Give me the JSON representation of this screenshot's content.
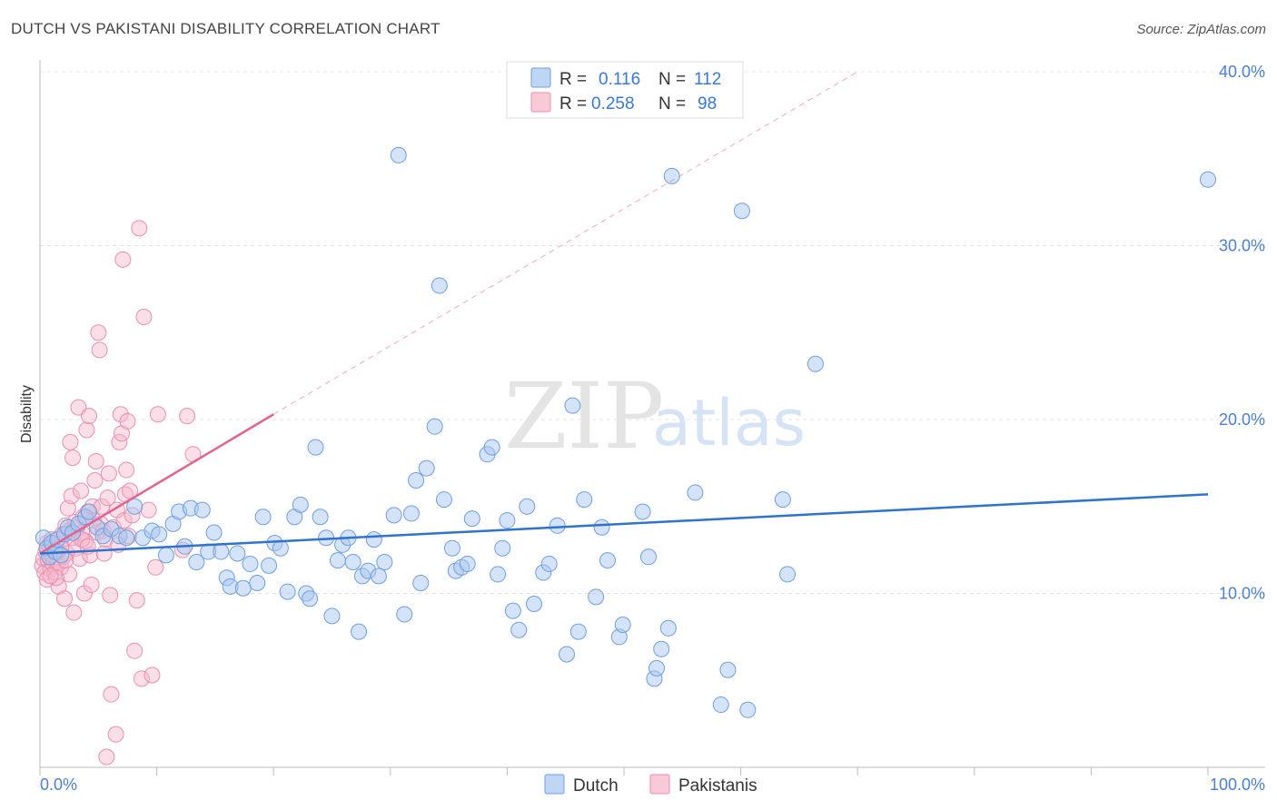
{
  "header": {
    "title": "DUTCH VS PAKISTANI DISABILITY CORRELATION CHART",
    "source": "Source: ZipAtlas.com"
  },
  "watermark": {
    "zip": "ZIP",
    "atlas": "atlas"
  },
  "legend": {
    "r_label": "R =",
    "n_label": "N =",
    "rows": [
      {
        "r": "0.116",
        "n": "112",
        "color": "#a9c7f0"
      },
      {
        "r": "0.258",
        "n": "98",
        "color": "#f5b8cb"
      }
    ]
  },
  "bottom_legend": [
    {
      "label": "Dutch",
      "color": "#a9c7f0"
    },
    {
      "label": "Pakistanis",
      "color": "#f5b8cb"
    }
  ],
  "colors": {
    "dutch_fill": "#a9c7f0",
    "dutch_stroke": "#6f9fe0",
    "dutch_line": "#2f72cf",
    "pak_fill": "#f5b8cb",
    "pak_stroke": "#ea8fad",
    "pak_line": "#e4648f"
  },
  "chart_data": {
    "type": "scatter",
    "title": "DUTCH VS PAKISTANI DISABILITY CORRELATION CHART",
    "xlabel": "",
    "ylabel": "Disability",
    "xlim": [
      0,
      100
    ],
    "ylim": [
      0,
      40
    ],
    "x_ticks": [
      "0.0%",
      "100.0%"
    ],
    "y_ticks": [
      {
        "value": 10,
        "label": "10.0%"
      },
      {
        "value": 20,
        "label": "20.0%"
      },
      {
        "value": 30,
        "label": "30.0%"
      },
      {
        "value": 40,
        "label": "40.0%"
      }
    ],
    "grid": true,
    "series": [
      {
        "name": "Dutch",
        "r": 0.116,
        "n": 112,
        "trend": {
          "x": [
            0,
            100
          ],
          "y": [
            12.3,
            15.7
          ]
        },
        "points": [
          [
            0.3,
            13.2
          ],
          [
            0.6,
            12.6
          ],
          [
            0.8,
            12.1
          ],
          [
            1.0,
            12.9
          ],
          [
            1.3,
            12.4
          ],
          [
            1.5,
            13.1
          ],
          [
            1.8,
            12.2
          ],
          [
            2.1,
            13.4
          ],
          [
            2.4,
            13.8
          ],
          [
            2.8,
            13.5
          ],
          [
            3.3,
            14.0
          ],
          [
            3.9,
            14.4
          ],
          [
            4.2,
            14.7
          ],
          [
            4.9,
            13.8
          ],
          [
            5.4,
            13.3
          ],
          [
            6.1,
            13.7
          ],
          [
            6.8,
            13.3
          ],
          [
            7.4,
            13.2
          ],
          [
            8.1,
            15.0
          ],
          [
            8.8,
            13.2
          ],
          [
            9.6,
            13.6
          ],
          [
            10.2,
            13.4
          ],
          [
            10.8,
            12.2
          ],
          [
            11.4,
            14.0
          ],
          [
            11.9,
            14.7
          ],
          [
            12.4,
            12.7
          ],
          [
            12.9,
            14.9
          ],
          [
            13.4,
            11.8
          ],
          [
            13.9,
            14.8
          ],
          [
            14.4,
            12.4
          ],
          [
            14.9,
            13.5
          ],
          [
            15.5,
            12.4
          ],
          [
            16.0,
            10.9
          ],
          [
            16.3,
            10.4
          ],
          [
            16.9,
            12.3
          ],
          [
            17.4,
            10.3
          ],
          [
            18.0,
            11.7
          ],
          [
            18.6,
            10.6
          ],
          [
            19.1,
            14.4
          ],
          [
            19.6,
            11.6
          ],
          [
            20.1,
            12.9
          ],
          [
            20.6,
            12.6
          ],
          [
            21.2,
            10.1
          ],
          [
            21.8,
            14.4
          ],
          [
            22.3,
            15.1
          ],
          [
            22.8,
            10.0
          ],
          [
            23.1,
            9.7
          ],
          [
            23.6,
            18.4
          ],
          [
            24.0,
            14.4
          ],
          [
            24.5,
            13.2
          ],
          [
            25.0,
            8.7
          ],
          [
            25.5,
            11.9
          ],
          [
            25.9,
            12.8
          ],
          [
            26.4,
            13.2
          ],
          [
            26.8,
            11.8
          ],
          [
            27.3,
            7.8
          ],
          [
            27.6,
            11.0
          ],
          [
            28.1,
            11.3
          ],
          [
            28.6,
            13.1
          ],
          [
            29.0,
            11.0
          ],
          [
            29.5,
            11.8
          ],
          [
            30.3,
            14.5
          ],
          [
            30.7,
            35.2
          ],
          [
            31.2,
            8.8
          ],
          [
            31.8,
            14.6
          ],
          [
            32.2,
            16.5
          ],
          [
            32.6,
            10.6
          ],
          [
            33.1,
            17.2
          ],
          [
            33.8,
            19.6
          ],
          [
            34.2,
            27.7
          ],
          [
            34.6,
            15.4
          ],
          [
            35.3,
            12.6
          ],
          [
            35.6,
            11.3
          ],
          [
            36.1,
            11.5
          ],
          [
            36.6,
            11.7
          ],
          [
            37.0,
            14.3
          ],
          [
            38.3,
            18.0
          ],
          [
            38.7,
            18.4
          ],
          [
            39.2,
            11.1
          ],
          [
            39.6,
            12.6
          ],
          [
            40.0,
            14.2
          ],
          [
            40.5,
            9.0
          ],
          [
            41.0,
            7.9
          ],
          [
            41.7,
            15.0
          ],
          [
            42.3,
            9.4
          ],
          [
            43.1,
            11.2
          ],
          [
            43.6,
            11.7
          ],
          [
            44.3,
            13.9
          ],
          [
            45.1,
            6.5
          ],
          [
            45.6,
            20.8
          ],
          [
            46.1,
            7.8
          ],
          [
            46.6,
            15.4
          ],
          [
            47.6,
            9.8
          ],
          [
            48.1,
            13.8
          ],
          [
            48.6,
            11.9
          ],
          [
            49.6,
            7.5
          ],
          [
            49.9,
            8.2
          ],
          [
            51.6,
            14.7
          ],
          [
            52.1,
            12.1
          ],
          [
            52.6,
            5.1
          ],
          [
            52.8,
            5.7
          ],
          [
            53.2,
            6.8
          ],
          [
            53.8,
            8.0
          ],
          [
            54.1,
            34.0
          ],
          [
            56.1,
            15.8
          ],
          [
            58.3,
            3.6
          ],
          [
            58.9,
            5.6
          ],
          [
            60.1,
            32.0
          ],
          [
            60.6,
            3.3
          ],
          [
            63.6,
            15.4
          ],
          [
            64.0,
            11.1
          ],
          [
            66.4,
            23.2
          ],
          [
            100.0,
            33.8
          ]
        ]
      },
      {
        "name": "Pakistanis",
        "r": 0.258,
        "n": 98,
        "trend": {
          "x": [
            0,
            20
          ],
          "y": [
            12.3,
            20.3
          ]
        },
        "trend_extension": {
          "x": [
            20,
            70
          ],
          "y": [
            20.3,
            40.0
          ]
        },
        "points": [
          [
            0.2,
            11.6
          ],
          [
            0.3,
            12.0
          ],
          [
            0.4,
            11.2
          ],
          [
            0.5,
            12.4
          ],
          [
            0.6,
            10.8
          ],
          [
            0.7,
            11.9
          ],
          [
            0.8,
            12.8
          ],
          [
            0.9,
            11.4
          ],
          [
            1.0,
            12.2
          ],
          [
            1.1,
            11.7
          ],
          [
            1.2,
            13.0
          ],
          [
            1.3,
            11.2
          ],
          [
            1.4,
            12.5
          ],
          [
            1.5,
            11.8
          ],
          [
            1.6,
            10.4
          ],
          [
            1.7,
            12.9
          ],
          [
            1.8,
            11.5
          ],
          [
            1.9,
            13.4
          ],
          [
            2.0,
            12.1
          ],
          [
            2.1,
            9.7
          ],
          [
            2.2,
            13.9
          ],
          [
            2.3,
            12.3
          ],
          [
            2.4,
            14.9
          ],
          [
            2.5,
            11.1
          ],
          [
            2.5,
            13.6
          ],
          [
            2.6,
            18.7
          ],
          [
            2.7,
            15.6
          ],
          [
            2.8,
            13.2
          ],
          [
            2.8,
            17.8
          ],
          [
            2.9,
            8.9
          ],
          [
            3.0,
            14.1
          ],
          [
            3.1,
            12.6
          ],
          [
            3.2,
            13.8
          ],
          [
            3.3,
            20.7
          ],
          [
            3.4,
            12.0
          ],
          [
            3.5,
            15.9
          ],
          [
            3.6,
            13.5
          ],
          [
            3.7,
            14.4
          ],
          [
            3.8,
            10.0
          ],
          [
            3.9,
            13.0
          ],
          [
            4.0,
            19.4
          ],
          [
            4.1,
            14.7
          ],
          [
            4.2,
            20.2
          ],
          [
            4.3,
            12.2
          ],
          [
            4.4,
            10.5
          ],
          [
            4.5,
            15.0
          ],
          [
            4.6,
            14.2
          ],
          [
            4.7,
            16.5
          ],
          [
            4.8,
            17.6
          ],
          [
            4.9,
            13.5
          ],
          [
            5.0,
            25.0
          ],
          [
            5.1,
            24.0
          ],
          [
            5.2,
            14.0
          ],
          [
            5.3,
            15.0
          ],
          [
            5.4,
            13.6
          ],
          [
            5.5,
            12.3
          ],
          [
            5.6,
            13.1
          ],
          [
            5.7,
            0.6
          ],
          [
            5.8,
            15.5
          ],
          [
            5.9,
            16.9
          ],
          [
            6.0,
            9.9
          ],
          [
            6.1,
            4.2
          ],
          [
            6.3,
            13.8
          ],
          [
            6.5,
            1.9
          ],
          [
            6.6,
            14.8
          ],
          [
            6.7,
            12.8
          ],
          [
            6.8,
            18.7
          ],
          [
            6.9,
            20.3
          ],
          [
            7.0,
            19.2
          ],
          [
            7.1,
            29.2
          ],
          [
            7.2,
            14.2
          ],
          [
            7.3,
            15.7
          ],
          [
            7.4,
            17.1
          ],
          [
            7.5,
            19.9
          ],
          [
            7.6,
            13.3
          ],
          [
            7.7,
            15.9
          ],
          [
            7.9,
            14.5
          ],
          [
            8.1,
            6.7
          ],
          [
            8.3,
            9.6
          ],
          [
            8.5,
            31.0
          ],
          [
            8.7,
            5.1
          ],
          [
            8.9,
            25.9
          ],
          [
            9.3,
            14.8
          ],
          [
            9.6,
            5.3
          ],
          [
            9.9,
            11.5
          ],
          [
            10.1,
            20.3
          ],
          [
            12.2,
            12.5
          ],
          [
            12.6,
            20.2
          ],
          [
            13.1,
            18.0
          ],
          [
            0.6,
            12.9
          ],
          [
            1.0,
            13.1
          ],
          [
            1.4,
            10.9
          ],
          [
            1.8,
            12.7
          ],
          [
            2.2,
            11.9
          ],
          [
            3.6,
            13.1
          ],
          [
            4.1,
            12.7
          ],
          [
            0.9,
            11.0
          ],
          [
            1.5,
            12.4
          ]
        ]
      }
    ]
  }
}
